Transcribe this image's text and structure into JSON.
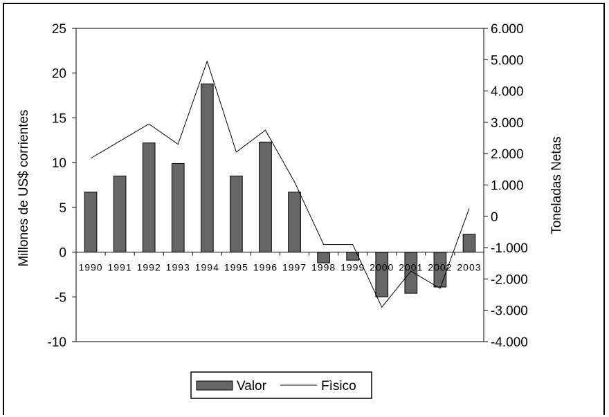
{
  "chart_data": {
    "type": "bar+line",
    "categories": [
      "1990",
      "1991",
      "1992",
      "1993",
      "1994",
      "1995",
      "1996",
      "1997",
      "1998",
      "1999",
      "2000",
      "2001",
      "2002",
      "2003"
    ],
    "series": [
      {
        "name": "Valor",
        "type": "bar",
        "axis": "left",
        "values": [
          6.7,
          8.5,
          12.2,
          9.9,
          18.8,
          8.5,
          12.3,
          6.7,
          -1.2,
          -0.9,
          -5.0,
          -4.6,
          -3.9,
          2.0
        ],
        "color": "#666666"
      },
      {
        "name": "Fìsico",
        "type": "line",
        "axis": "right",
        "values": [
          1850,
          2400,
          2950,
          2300,
          4950,
          2050,
          2750,
          1100,
          -900,
          -900,
          -2900,
          -1750,
          -2300,
          250
        ],
        "color": "#000000"
      }
    ],
    "ylabel": "Millones de US$ corrientes",
    "y2label": "Toneladas Netas",
    "ylim": [
      -10,
      25
    ],
    "y2lim": [
      -4000,
      6000
    ],
    "yticks": [
      "25",
      "20",
      "15",
      "10",
      "5",
      "0",
      "-5",
      "-10"
    ],
    "y2ticks": [
      "6.000",
      "5.000",
      "4.000",
      "3.000",
      "2.000",
      "1.000",
      "0",
      "-1.000",
      "-2.000",
      "-3.000",
      "-4.000"
    ],
    "legend_position": "bottom",
    "grid": false
  }
}
